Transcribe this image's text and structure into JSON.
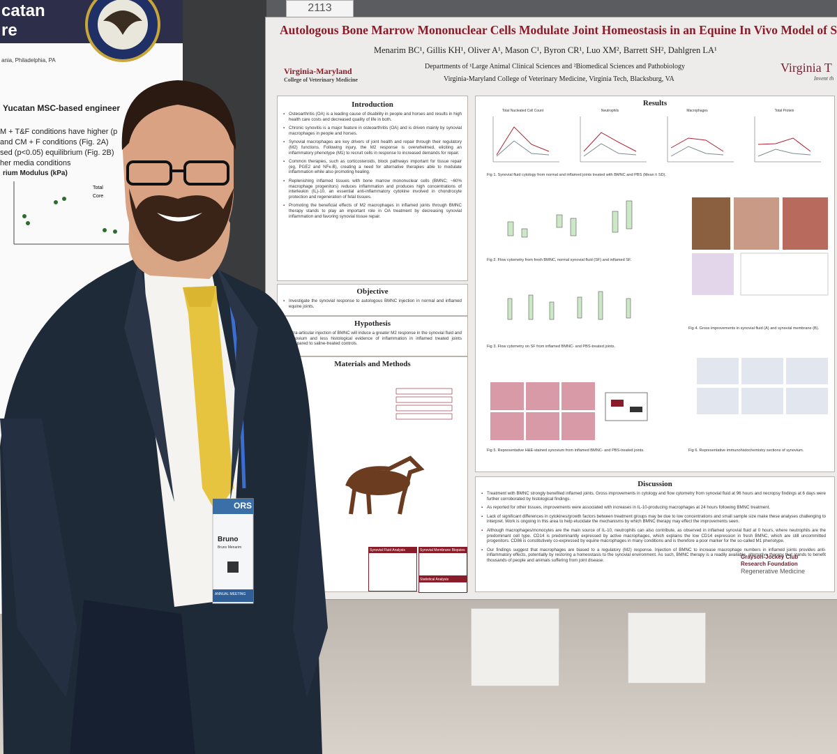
{
  "booth_number": "2113",
  "left_poster": {
    "title_lines": [
      "catan",
      "re"
    ],
    "affiliation": "ania, Philadelphia, PA",
    "section_heading": "Yucatan MSC-based engineer",
    "text_lines": [
      "M + T&F conditions have higher (p",
      "and CM + F conditions (Fig. 2A)",
      "sed (p<0.05) equilibrium (Fig. 2B)",
      "her media conditions"
    ],
    "axis_label": "rium Modulus (kPa)",
    "legend": [
      "Total",
      "Core"
    ]
  },
  "poster": {
    "title": "Autologous Bone Marrow Mononuclear Cells Modulate Joint Homeostasis in an Equine In Vivo Model of Syn",
    "authors": "Menarim BC¹, Gillis KH¹, Oliver A¹, Mason C¹, Byron CR¹, Luo XM², Barrett SH², Dahlgren LA¹",
    "departments": "Departments of ¹Large Animal Clinical Sciences and ²Biomedical Sciences and Pathobiology",
    "college": "Virginia-Maryland College of Veterinary Medicine, Virginia Tech, Blacksburg, VA",
    "logo_left": [
      "Virginia-Maryland",
      "College of Veterinary Medicine"
    ],
    "logo_right": [
      "Virginia T",
      "Invent th"
    ],
    "introduction": {
      "heading": "Introduction",
      "bullets": [
        "Osteoarthritis (OA) is a leading cause of disability in people and horses and results in high health care costs and decreased quality of life in both.",
        "Chronic synovitis is a major feature in osteoarthritis (OA) and is driven mainly by synovial macrophages in people and horses.",
        "Synovial macrophages are key drivers of joint health and repair through their regulatory (M2) functions. Following injury, the M2 response is overwhelmed, eliciting an inflammatory phenotype (M1) to recruit cells in response to increased demands for repair.",
        "Common therapies, such as corticosteroids, block pathways important for tissue repair (eg, PGE2 and NFκ-B), creating a need for alternative therapies able to modulate inflammation while also promoting healing.",
        "Replenishing inflamed tissues with bone marrow mononuclear cells (BMNC; ~60% macrophage progenitors) reduces inflammation and produces high concentrations of interleukin (IL)-10, an essential anti-inflammatory cytokine involved in chondrocyte protection and regeneration of fetal tissues.",
        "Promoting the beneficial effects of M2 macrophages in inflamed joints through BMNC therapy stands to play an important role in OA treatment by decreasing synovial inflammation and favoring synovial tissue repair."
      ]
    },
    "objective": {
      "heading": "Objective",
      "text": "Investigate the synovial response to autologous BMNC injection in normal and inflamed equine joints."
    },
    "hypothesis": {
      "heading": "Hypothesis",
      "text": "Intra-articular injection of BMNC will induce a greater M2 response in the synovial fluid and synovium and less histological evidence of inflammation in inflamed treated joints compared to saline-treated controls."
    },
    "methods": {
      "heading": "Materials and Methods",
      "boxes": [
        "Synovial Fluid Analysis",
        "Synovial Membrane Biopsies",
        "Statistical Analysis"
      ]
    },
    "results": {
      "heading": "Results",
      "chart_titles": [
        "Total Nucleated Cell Count",
        "Neutrophils",
        "Macrophages",
        "Total Protein"
      ],
      "captions": [
        "Fig 1. Synovial fluid cytology from normal and inflamed joints treated with BMNC and PBS (Mean ± SD).",
        "Fig 2. Flow cytometry from fresh BMNC, normal synovial fluid (SF) and inflamed SF.",
        "Fig 3. Flow cytometry on SF from inflamed BMNC- and PBS-treated joints.",
        "Fig 4. Gross improvements in synovial fluid (A) and synovial membrane (B).",
        "Fig 5. Representative H&E-stained synovium from inflamed BMNC- and PBS-treated joints.",
        "Fig 6. Representative immunohistochemistry sections of synovium."
      ]
    },
    "discussion": {
      "heading": "Discussion",
      "bullets": [
        "Treatment with BMNC strongly benefited inflamed joints. Gross improvements in cytology and flow cytometry from synovial fluid at 96 hours and necropsy findings at 6 days were further corroborated by histological findings.",
        "As reported for other tissues, improvements were associated with increases in IL-10-producing macrophages at 24 hours following BMNC treatment.",
        "Lack of significant differences in cytokines/growth factors between treatment groups may be due to low concentrations and small sample size make these analyses challenging to interpret. Work is ongoing in this area to help elucidate the mechanisms by which BMNC therapy may effect the improvements seen.",
        "Although macrophages/monocytes are the main source of IL-10, neutrophils can also contribute, as observed in inflamed synovial fluid at 0 hours, where neutrophils are the predominant cell type. CD14 is predominantly expressed by active macrophages, which explains the low CD14 expression in fresh BMNC, which are still uncommitted progenitors. CD86 is constitutively co-expressed by equine macrophages in many conditions and is therefore a poor marker for the so-called M1 phenotype.",
        "Our findings suggest that macrophages are biased to a regulatory (M2) response. Injection of BMNC to increase macrophage numbers in inflamed joints provides anti-inflammatory effects, potentially by restoring a homeostasis to the synovial environment. As such, BMNC therapy is a readily available, alternative therapy that stands to benefit thousands of people and animals suffering from joint disease."
      ]
    },
    "sponsor": [
      "Grayson-Jockey Club",
      "Research Foundation",
      "Regenerative Medicine"
    ]
  },
  "badge": {
    "logo": "ORS",
    "name": "Bruno",
    "full_name": "Bruno Menarim",
    "ribbon": "ANNUAL MEETING"
  }
}
